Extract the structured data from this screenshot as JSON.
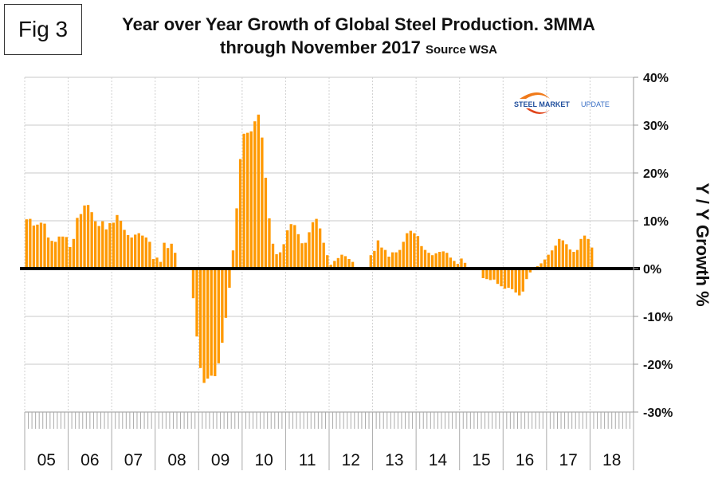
{
  "figure_label": "Fig 3",
  "title_line1": "Year over Year Growth of Global Steel Production. 3MMA",
  "title_line2": "through November 2017",
  "source": "Source WSA",
  "logo": {
    "bold": "STEEL MARKET",
    "light": "UPDATE"
  },
  "colors": {
    "bar": "#ff9900",
    "zero_line": "#000000",
    "grid": "#c8c8c8"
  },
  "chart_data": {
    "type": "bar",
    "title": "Year over Year Growth of Global Steel Production. 3MMA through November 2017",
    "subtitle": "Source WSA",
    "xlabel": "",
    "ylabel": "Y / Y Growth %",
    "ylim": [
      -30,
      40
    ],
    "y_ticks": [
      "40%",
      "30%",
      "20%",
      "10%",
      "0%",
      "-10%",
      "-20%",
      "-30%"
    ],
    "y_tick_values": [
      40,
      30,
      20,
      10,
      0,
      -10,
      -20,
      -30
    ],
    "x_tick_labels": [
      "05",
      "06",
      "07",
      "08",
      "09",
      "10",
      "11",
      "12",
      "13",
      "14",
      "15",
      "16",
      "17",
      "18"
    ],
    "x_start": "2005-01",
    "x_end": "2017-11",
    "frequency": "monthly",
    "grid": true,
    "y_axis_position": "right",
    "series": [
      {
        "name": "Y/Y Growth 3MMA (%)",
        "values": [
          10.3,
          10.4,
          9.0,
          9.2,
          9.6,
          9.4,
          6.5,
          5.8,
          5.6,
          6.7,
          6.7,
          6.6,
          4.5,
          6.2,
          10.6,
          11.4,
          13.2,
          13.3,
          11.8,
          9.9,
          8.9,
          9.9,
          8.2,
          9.5,
          9.6,
          11.2,
          10.0,
          8.1,
          7.0,
          6.5,
          7.1,
          7.4,
          6.9,
          6.5,
          5.6,
          2.0,
          2.3,
          1.4,
          5.4,
          4.3,
          5.2,
          3.3,
          0,
          0,
          0,
          0,
          -6.2,
          -14.2,
          -20.8,
          -23.9,
          -23.0,
          -22.4,
          -22.5,
          -19.8,
          -15.5,
          -10.3,
          -4.0,
          3.8,
          12.6,
          22.9,
          28.2,
          28.4,
          28.7,
          30.8,
          32.2,
          27.4,
          19.0,
          10.5,
          5.2,
          3.0,
          3.4,
          5.1,
          8.0,
          9.3,
          9.1,
          7.2,
          5.3,
          5.4,
          7.6,
          9.7,
          10.4,
          8.4,
          5.4,
          2.8,
          0.8,
          1.6,
          2.2,
          2.9,
          2.6,
          2.0,
          1.4,
          0.3,
          0.3,
          0.3,
          0.3,
          2.8,
          3.7,
          5.9,
          4.4,
          3.9,
          2.5,
          3.4,
          3.4,
          3.9,
          5.6,
          7.4,
          7.9,
          7.4,
          6.8,
          4.7,
          3.9,
          3.3,
          2.8,
          3.2,
          3.5,
          3.6,
          3.3,
          2.3,
          1.6,
          1.0,
          2.1,
          1.2,
          0,
          0,
          0,
          0,
          -2.0,
          -2.2,
          -2.4,
          -2.3,
          -3.2,
          -3.7,
          -4.2,
          -4.0,
          -4.3,
          -5.0,
          -5.6,
          -4.8,
          -2.2,
          -0.8,
          0.3,
          0.5,
          1.1,
          1.9,
          2.9,
          3.8,
          4.8,
          6.2,
          5.9,
          5.1,
          4.0,
          3.5,
          3.9,
          6.2,
          6.9,
          6.2,
          4.4
        ]
      }
    ]
  }
}
